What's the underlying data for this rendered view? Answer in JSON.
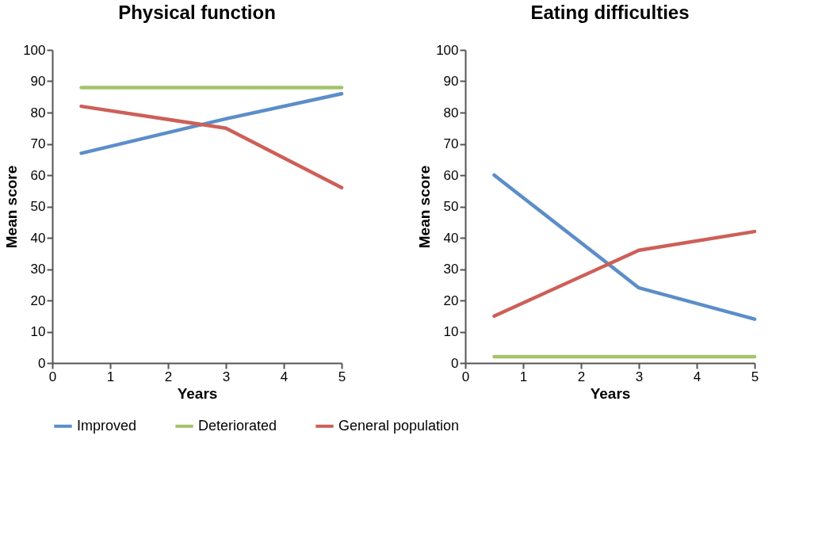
{
  "chart_data": [
    {
      "type": "line",
      "title": "Physical function",
      "xlabel": "Years",
      "ylabel": "Mean score",
      "x": [
        0.5,
        3,
        5
      ],
      "xlim": [
        0,
        5
      ],
      "xticks": [
        0,
        1,
        2,
        3,
        4,
        5
      ],
      "ylim": [
        0,
        100
      ],
      "yticks": [
        0,
        10,
        20,
        30,
        40,
        50,
        60,
        70,
        80,
        90,
        100
      ],
      "grid": false,
      "legend": "bottom",
      "marker": "none",
      "line_style": "solid",
      "series": [
        {
          "name": "Improved",
          "color": "#5b8ec9",
          "values": [
            67,
            78,
            86
          ]
        },
        {
          "name": "Deteriorated",
          "color": "#a4c36a",
          "values": [
            88,
            88,
            88
          ]
        },
        {
          "name": "General population",
          "color": "#cd5f58",
          "values": [
            82,
            75,
            56
          ]
        }
      ]
    },
    {
      "type": "line",
      "title": "Eating difficulties",
      "xlabel": "Years",
      "ylabel": "Mean score",
      "x": [
        0.5,
        3,
        5
      ],
      "xlim": [
        0,
        5
      ],
      "xticks": [
        0,
        1,
        2,
        3,
        4,
        5
      ],
      "ylim": [
        0,
        100
      ],
      "yticks": [
        0,
        10,
        20,
        30,
        40,
        50,
        60,
        70,
        80,
        90,
        100
      ],
      "grid": false,
      "legend": "bottom",
      "marker": "none",
      "line_style": "solid",
      "series": [
        {
          "name": "Improved",
          "color": "#5b8ec9",
          "values": [
            60,
            24,
            14
          ]
        },
        {
          "name": "Deteriorated",
          "color": "#a4c36a",
          "values": [
            2,
            2,
            2
          ]
        },
        {
          "name": "General population",
          "color": "#cd5f58",
          "values": [
            15,
            36,
            42
          ]
        }
      ]
    }
  ]
}
